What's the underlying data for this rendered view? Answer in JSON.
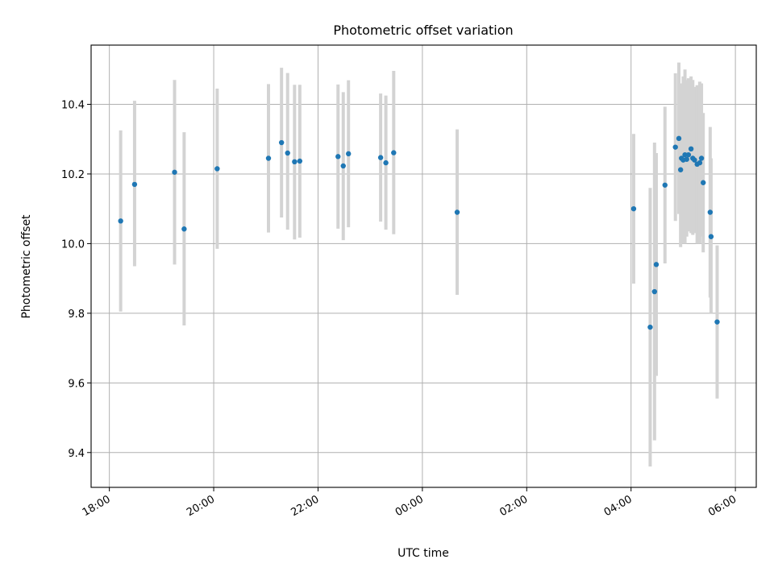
{
  "chart_data": {
    "type": "scatter",
    "title": "Photometric offset variation",
    "xlabel": "UTC time",
    "ylabel": "Photometric offset",
    "x_tick_labels": [
      "18:00",
      "20:00",
      "22:00",
      "00:00",
      "02:00",
      "04:00",
      "06:00"
    ],
    "x_tick_hours": [
      18,
      20,
      22,
      24,
      26,
      28,
      30
    ],
    "xlim_hours": [
      17.65,
      30.4
    ],
    "y_ticks": [
      9.4,
      9.6,
      9.8,
      10.0,
      10.2,
      10.4
    ],
    "y_tick_labels": [
      "9.4",
      "9.6",
      "9.8",
      "10.0",
      "10.2",
      "10.4"
    ],
    "ylim": [
      9.3,
      10.57
    ],
    "grid": true,
    "point_color": "#1f77b4",
    "errorbar_color": "#d3d3d3",
    "points": [
      {
        "t": "18:13",
        "y": 10.065,
        "lo": 9.805,
        "hi": 10.325
      },
      {
        "t": "18:29",
        "y": 10.17,
        "lo": 9.935,
        "hi": 10.41
      },
      {
        "t": "19:15",
        "y": 10.205,
        "lo": 9.94,
        "hi": 10.47
      },
      {
        "t": "19:26",
        "y": 10.042,
        "lo": 9.765,
        "hi": 10.32
      },
      {
        "t": "20:04",
        "y": 10.215,
        "lo": 9.985,
        "hi": 10.445
      },
      {
        "t": "21:03",
        "y": 10.245,
        "lo": 10.032,
        "hi": 10.458
      },
      {
        "t": "21:18",
        "y": 10.29,
        "lo": 10.075,
        "hi": 10.505
      },
      {
        "t": "21:25",
        "y": 10.26,
        "lo": 10.04,
        "hi": 10.49
      },
      {
        "t": "21:33",
        "y": 10.235,
        "lo": 10.012,
        "hi": 10.456
      },
      {
        "t": "21:39",
        "y": 10.237,
        "lo": 10.017,
        "hi": 10.456
      },
      {
        "t": "22:23",
        "y": 10.25,
        "lo": 10.043,
        "hi": 10.457
      },
      {
        "t": "22:29",
        "y": 10.223,
        "lo": 10.01,
        "hi": 10.435
      },
      {
        "t": "22:35",
        "y": 10.258,
        "lo": 10.047,
        "hi": 10.469
      },
      {
        "t": "23:12",
        "y": 10.247,
        "lo": 10.063,
        "hi": 10.431
      },
      {
        "t": "23:18",
        "y": 10.232,
        "lo": 10.04,
        "hi": 10.425
      },
      {
        "t": "23:27",
        "y": 10.261,
        "lo": 10.027,
        "hi": 10.496
      },
      {
        "t": "00:40",
        "y": 10.09,
        "lo": 9.853,
        "hi": 10.328
      },
      {
        "t": "04:03",
        "y": 10.1,
        "lo": 9.885,
        "hi": 10.315
      },
      {
        "t": "04:22",
        "y": 9.76,
        "lo": 9.36,
        "hi": 10.16
      },
      {
        "t": "04:27",
        "y": 9.862,
        "lo": 9.435,
        "hi": 10.29
      },
      {
        "t": "04:29",
        "y": 9.94,
        "lo": 9.62,
        "hi": 10.26
      },
      {
        "t": "04:39",
        "y": 10.168,
        "lo": 9.943,
        "hi": 10.393
      },
      {
        "t": "04:51",
        "y": 10.277,
        "lo": 10.065,
        "hi": 10.489
      },
      {
        "t": "04:55",
        "y": 10.302,
        "lo": 10.085,
        "hi": 10.52
      },
      {
        "t": "04:57",
        "y": 10.212,
        "lo": 9.99,
        "hi": 10.455
      },
      {
        "t": "04:58",
        "y": 10.245,
        "lo": 10.03,
        "hi": 10.46
      },
      {
        "t": "05:00",
        "y": 10.24,
        "lo": 10.0,
        "hi": 10.48
      },
      {
        "t": "05:02",
        "y": 10.255,
        "lo": 10.0,
        "hi": 10.5
      },
      {
        "t": "05:04",
        "y": 10.242,
        "lo": 10.02,
        "hi": 10.47
      },
      {
        "t": "05:06",
        "y": 10.255,
        "lo": 10.035,
        "hi": 10.475
      },
      {
        "t": "05:09",
        "y": 10.272,
        "lo": 10.03,
        "hi": 10.48
      },
      {
        "t": "05:11",
        "y": 10.245,
        "lo": 10.025,
        "hi": 10.47
      },
      {
        "t": "05:13",
        "y": 10.24,
        "lo": 10.03,
        "hi": 10.45
      },
      {
        "t": "05:16",
        "y": 10.228,
        "lo": 10.0,
        "hi": 10.455
      },
      {
        "t": "05:19",
        "y": 10.232,
        "lo": 10.0,
        "hi": 10.465
      },
      {
        "t": "05:21",
        "y": 10.245,
        "lo": 10.02,
        "hi": 10.46
      },
      {
        "t": "05:23",
        "y": 10.175,
        "lo": 9.975,
        "hi": 10.375
      },
      {
        "t": "05:31",
        "y": 10.09,
        "lo": 9.845,
        "hi": 10.335
      },
      {
        "t": "05:32",
        "y": 10.02,
        "lo": 9.8,
        "hi": 10.245
      },
      {
        "t": "05:39",
        "y": 9.775,
        "lo": 9.555,
        "hi": 9.995
      }
    ]
  }
}
